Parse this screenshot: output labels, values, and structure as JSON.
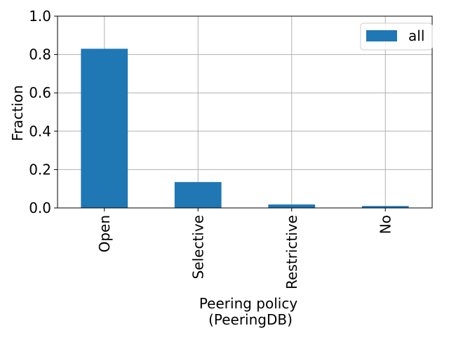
{
  "chart_data": {
    "type": "bar",
    "categories": [
      "Open",
      "Selective",
      "Restrictive",
      "No"
    ],
    "series": [
      {
        "name": "all",
        "values": [
          0.83,
          0.135,
          0.018,
          0.01
        ],
        "color": "#1f77b4"
      }
    ],
    "xlabel_line1": "Peering policy",
    "xlabel_line2": "(PeeringDB)",
    "ylabel": "Fraction",
    "ylim": [
      0,
      1.0
    ],
    "yticks": [
      0.0,
      0.2,
      0.4,
      0.6,
      0.8,
      1.0
    ],
    "ytick_labels": [
      "0.0",
      "0.2",
      "0.4",
      "0.6",
      "0.8",
      "1.0"
    ],
    "grid": true,
    "legend_position": "top-right",
    "xtick_rotation_deg": -90
  }
}
